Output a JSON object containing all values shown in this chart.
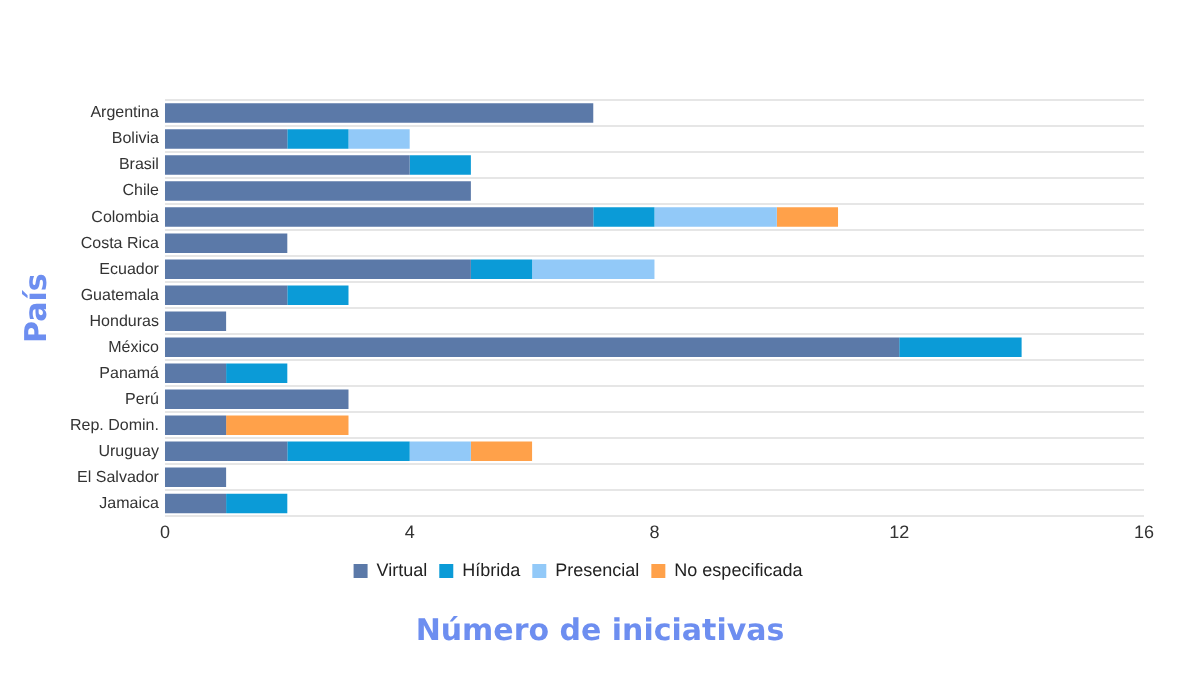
{
  "chart_data": {
    "type": "bar",
    "orientation": "horizontal",
    "stacked": true,
    "xlabel": "Número de iniciativas",
    "ylabel": "País",
    "categories": [
      "Argentina",
      "Bolivia",
      "Brasil",
      "Chile",
      "Colombia",
      "Costa Rica",
      "Ecuador",
      "Guatemala",
      "Honduras",
      "México",
      "Panamá",
      "Perú",
      "Rep. Domin.",
      "Uruguay",
      "El Salvador",
      "Jamaica"
    ],
    "series": [
      {
        "name": "Virtual",
        "color": "#5b79a8",
        "values": [
          7,
          2,
          4,
          5,
          7,
          2,
          5,
          2,
          1,
          12,
          1,
          3,
          1,
          2,
          1,
          1
        ]
      },
      {
        "name": "Híbrida",
        "color": "#0b9bd7",
        "values": [
          null,
          1,
          1,
          null,
          1,
          null,
          1,
          1,
          null,
          2,
          1,
          null,
          null,
          2,
          null,
          1
        ]
      },
      {
        "name": "Presencial",
        "color": "#92c9f8",
        "values": [
          null,
          1,
          null,
          null,
          2,
          null,
          2,
          null,
          null,
          null,
          null,
          null,
          null,
          1,
          null,
          null
        ]
      },
      {
        "name": "No especificada",
        "color": "#ffa14a",
        "values": [
          null,
          null,
          null,
          null,
          1,
          null,
          null,
          null,
          null,
          null,
          null,
          null,
          2,
          1,
          null,
          null
        ]
      }
    ],
    "xlim": [
      0,
      16
    ],
    "xticks": [
      0,
      4,
      8,
      12,
      16
    ],
    "grid": "y",
    "legend": "bottom"
  }
}
